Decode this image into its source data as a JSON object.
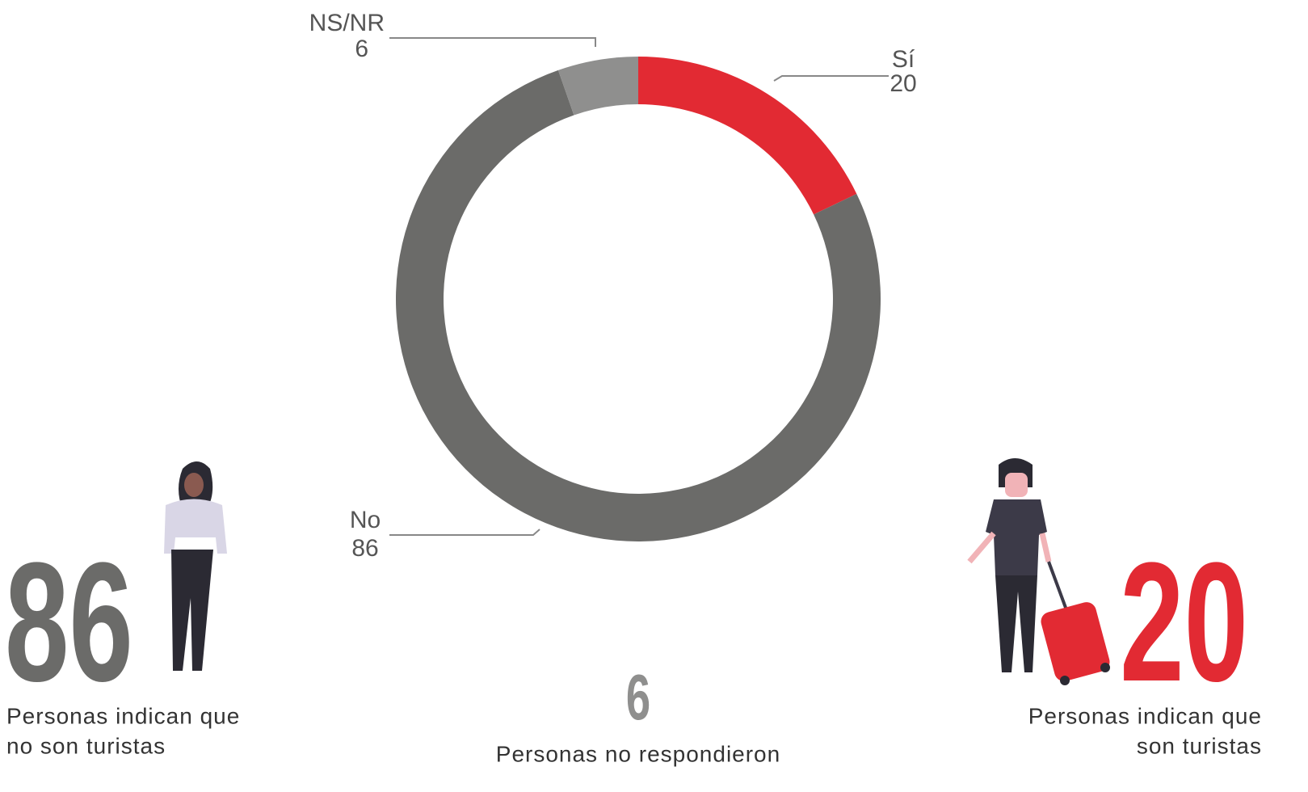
{
  "chart_data": {
    "type": "donut",
    "categories": [
      "Sí",
      "No",
      "NS/NR"
    ],
    "values": [
      20,
      86,
      6
    ],
    "colors": [
      "#e22a33",
      "#6b6b69",
      "#8f8f8e"
    ],
    "annotations": [
      [
        "Personas indican que",
        "son turistas"
      ],
      [
        "Personas indican que",
        "no son turistas"
      ],
      [
        "Personas no respondieron"
      ]
    ]
  }
}
